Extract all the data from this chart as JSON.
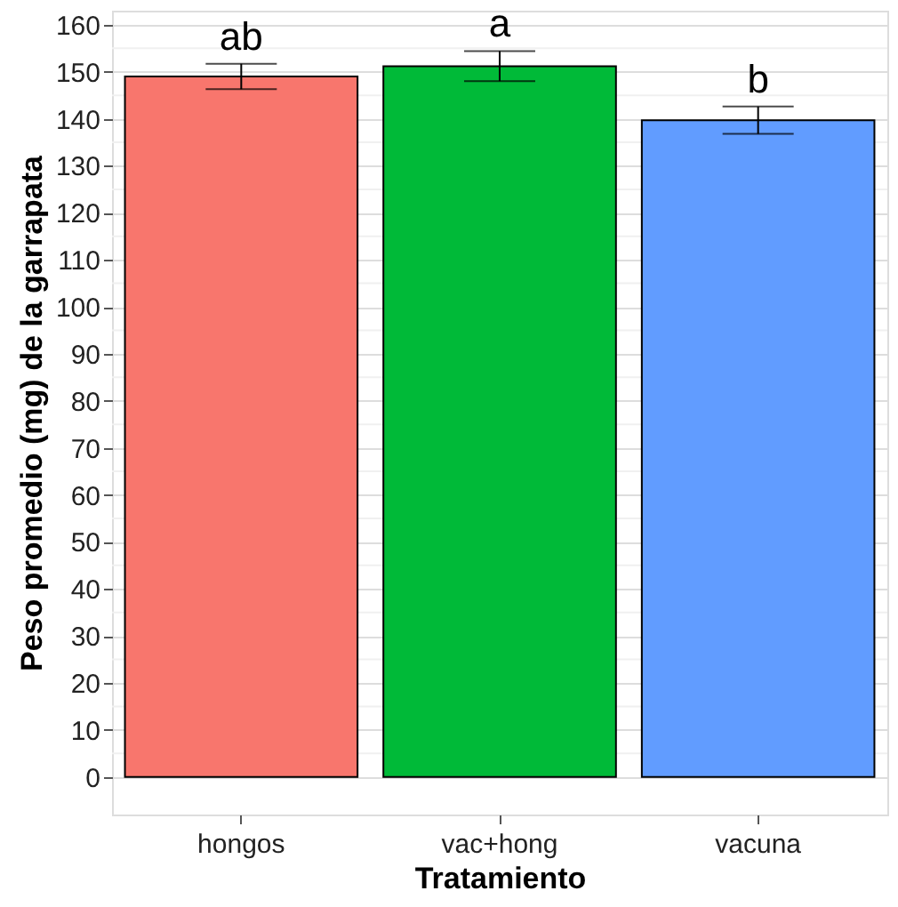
{
  "chart_data": {
    "type": "bar",
    "xlabel": "Tratamiento",
    "ylabel": "Peso promedio (mg) de la garrapata",
    "categories": [
      "hongos",
      "vac+hong",
      "vacuna"
    ],
    "values": [
      149.0,
      151.2,
      139.7
    ],
    "colors": [
      "#f8766d",
      "#00ba38",
      "#619cff"
    ],
    "errors": [
      2.7,
      3.2,
      2.9
    ],
    "annotations": [
      {
        "text": "ab",
        "x": "hongos",
        "y": 151.7
      },
      {
        "text": "a",
        "x": "vac+hong",
        "y": 154.4
      },
      {
        "text": "b",
        "x": "vacuna",
        "y": 142.6
      }
    ],
    "ylim": [
      -8,
      163
    ],
    "yticks": [
      0,
      10,
      20,
      30,
      40,
      50,
      60,
      70,
      80,
      90,
      100,
      110,
      120,
      130,
      140,
      150,
      160
    ],
    "grid": true
  }
}
